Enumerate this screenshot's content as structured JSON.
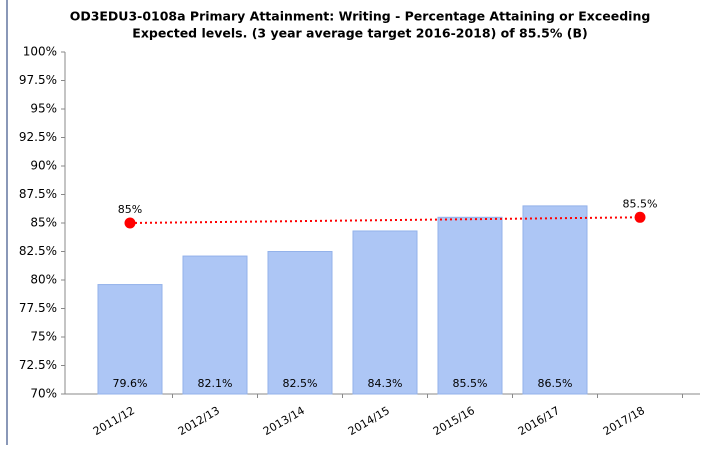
{
  "chart_data": {
    "type": "bar",
    "title": [
      "OD3EDU3-0108a Primary Attainment: Writing - Percentage Attaining or Exceeding",
      "Expected levels. (3 year average target 2016-2018) of 85.5% (B)"
    ],
    "categories": [
      "2011/12",
      "2012/13",
      "2013/14",
      "2014/15",
      "2015/16",
      "2016/17",
      "2017/18"
    ],
    "values": [
      79.6,
      82.1,
      82.5,
      84.3,
      85.5,
      86.5,
      null
    ],
    "value_labels": [
      "79.6%",
      "82.1%",
      "82.5%",
      "84.3%",
      "85.5%",
      "86.5%",
      null
    ],
    "color": "#adc6f5",
    "ylim": [
      70,
      100
    ],
    "yticks": [
      {
        "value": 70,
        "label": "70%"
      },
      {
        "value": 72.5,
        "label": "72.5%"
      },
      {
        "value": 75,
        "label": "75%"
      },
      {
        "value": 77.5,
        "label": "77.5%"
      },
      {
        "value": 80,
        "label": "80%"
      },
      {
        "value": 82.5,
        "label": "82.5%"
      },
      {
        "value": 85,
        "label": "85%"
      },
      {
        "value": 87.5,
        "label": "87.5%"
      },
      {
        "value": 90,
        "label": "90%"
      },
      {
        "value": 92.5,
        "label": "92.5%"
      },
      {
        "value": 95,
        "label": "95%"
      },
      {
        "value": 97.5,
        "label": "97.5%"
      },
      {
        "value": 100,
        "label": "100%"
      }
    ],
    "target": {
      "color": "#ff0000",
      "points": [
        {
          "category": "2011/12",
          "value": 85,
          "label": "85%"
        },
        {
          "category": "2017/18",
          "value": 85.5,
          "label": "85.5%"
        }
      ]
    }
  }
}
